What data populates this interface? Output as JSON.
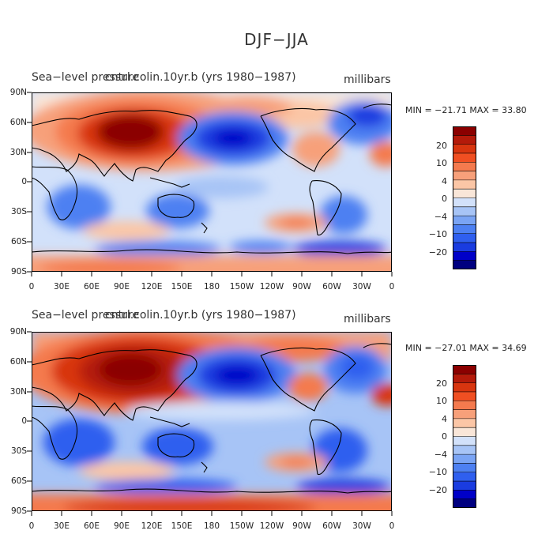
{
  "figure": {
    "title": "DJF−JJA"
  },
  "palette": {
    "colors": [
      "#000080",
      "#0000c8",
      "#1a3ce0",
      "#2f5fef",
      "#4d80f2",
      "#7aa4f4",
      "#a7c4f6",
      "#d2e1fa",
      "#f9e6d8",
      "#fbc6a6",
      "#f7a07a",
      "#f47a4e",
      "#f04f22",
      "#d8350f",
      "#b41a0a",
      "#8b0000"
    ],
    "levels": [
      "20",
      "10",
      "4",
      "0",
      "−4",
      "−10",
      "−20"
    ]
  },
  "panels": [
    {
      "title": "Sea−level pressure",
      "title_overlap": "cntrl.colin.10yr.b (yrs 1980−1987)",
      "units": "millibars",
      "minmax": "MIN = −21.71  MAX =  33.80",
      "y_ticks": [
        "90N",
        "60N",
        "30N",
        "0",
        "30S",
        "60S",
        "90S"
      ],
      "x_ticks": [
        "0",
        "30E",
        "60E",
        "90E",
        "120E",
        "150E",
        "180",
        "150W",
        "120W",
        "90W",
        "60W",
        "30W",
        "0"
      ]
    },
    {
      "title": "Sea−level pressure",
      "title_overlap": "cntrl.colin.10yr.b (yrs 1980−1987)",
      "units": "millibars",
      "minmax": "MIN = −27.01  MAX =  34.69",
      "y_ticks": [
        "90N",
        "60N",
        "30N",
        "0",
        "30S",
        "60S",
        "90S"
      ],
      "x_ticks": [
        "0",
        "30E",
        "60E",
        "90E",
        "120E",
        "150E",
        "180",
        "150W",
        "120W",
        "90W",
        "60W",
        "30W",
        "0"
      ]
    }
  ]
}
